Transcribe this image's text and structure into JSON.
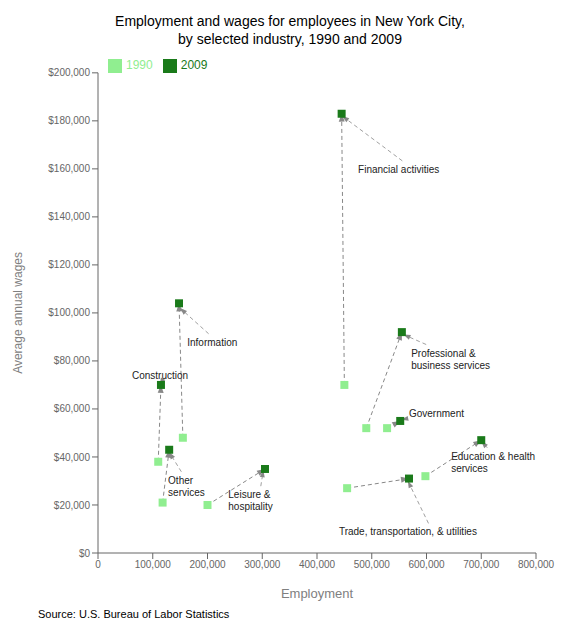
{
  "chart_data": {
    "type": "scatter",
    "title": "Employment and wages for employees in New York City,\nby selected industry, 1990 and 2009",
    "xlabel": "Employment",
    "ylabel": "Average annual wages",
    "source": "Source: U.S. Bureau of Labor Statistics",
    "xlim": [
      0,
      800000
    ],
    "ylim": [
      0,
      200000
    ],
    "xticks": [
      0,
      {
        "value": 100000,
        "label": "100,000"
      },
      {
        "value": 200000,
        "label": "200,000"
      },
      {
        "value": 300000,
        "label": "300,000"
      },
      {
        "value": 400000,
        "label": "400,000"
      },
      {
        "value": 500000,
        "label": "500,000"
      },
      {
        "value": 600000,
        "label": "600,000"
      },
      {
        "value": 700000,
        "label": "700,000"
      },
      {
        "value": 800000,
        "label": "800,000"
      }
    ],
    "yticks": [
      {
        "value": 0,
        "label": "$0"
      },
      {
        "value": 20000,
        "label": "$20,000"
      },
      {
        "value": 40000,
        "label": "$40,000"
      },
      {
        "value": 60000,
        "label": "$60,000"
      },
      {
        "value": 80000,
        "label": "$80,000"
      },
      {
        "value": 100000,
        "label": "$100,000"
      },
      {
        "value": 120000,
        "label": "$120,000"
      },
      {
        "value": 140000,
        "label": "$140,000"
      },
      {
        "value": 160000,
        "label": "$160,000"
      },
      {
        "value": 180000,
        "label": "$180,000"
      },
      {
        "value": 200000,
        "label": "$200,000"
      }
    ],
    "grid": false,
    "legend": "upper left",
    "marker": "square",
    "series": [
      {
        "name": "1990",
        "color": "#90EE90",
        "x": [
          110000,
          155000,
          118000,
          200000,
          450000,
          490000,
          528000,
          455000,
          598000
        ],
        "values": [
          38000,
          48000,
          21000,
          20000,
          70000,
          52000,
          52000,
          27000,
          32000
        ]
      },
      {
        "name": "2009",
        "color": "#1a7a1a",
        "x": [
          115000,
          148000,
          130000,
          305000,
          445000,
          555000,
          552000,
          568000,
          700000
        ],
        "values": [
          70000,
          104000,
          43000,
          35000,
          183000,
          92000,
          55000,
          31000,
          47000
        ]
      }
    ],
    "annotations": [
      {
        "text": "Construction",
        "xy": [
          113000,
          70000
        ],
        "xytext": [
          62000,
          74000
        ]
      },
      {
        "text": "Information",
        "xy": [
          150000,
          102000
        ],
        "xytext": [
          163000,
          88000
        ]
      },
      {
        "text": "Other\nservices",
        "xy": [
          130000,
          42000
        ],
        "xytext": [
          128000,
          28000
        ]
      },
      {
        "text": "Leisure &\nhospitality",
        "xy": [
          302000,
          34500
        ],
        "xytext": [
          238000,
          22000
        ]
      },
      {
        "text": "Financial activities",
        "xy": [
          446000,
          182000
        ],
        "xytext": [
          475000,
          160000
        ]
      },
      {
        "text": "Professional &\nbusiness services",
        "xy": [
          558000,
          91000
        ],
        "xytext": [
          572000,
          81000
        ]
      },
      {
        "text": "Government",
        "xy": [
          554000,
          55500
        ],
        "xytext": [
          568000,
          58500
        ]
      },
      {
        "text": "Trade, transportation, & utilities",
        "xy": [
          566000,
          30000
        ],
        "xytext": [
          440000,
          9000
        ]
      },
      {
        "text": "Education & health\nservices",
        "xy": [
          700000,
          46500
        ],
        "xytext": [
          645000,
          38000
        ]
      }
    ]
  }
}
